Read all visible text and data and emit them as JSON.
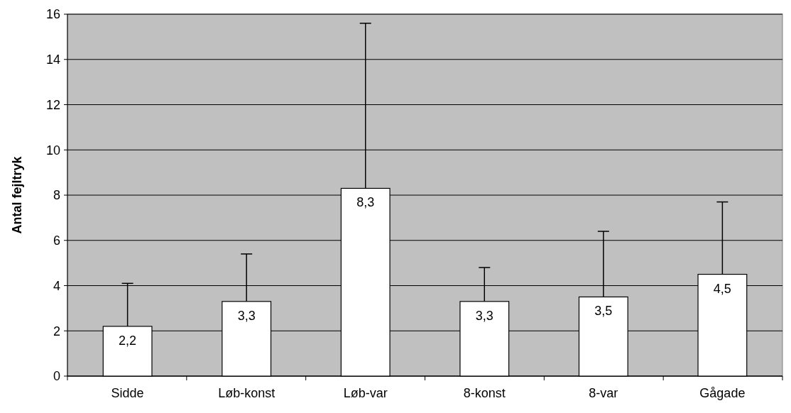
{
  "chart_data": {
    "type": "bar",
    "ylabel": "Antal fejltryk",
    "categories": [
      "Sidde",
      "Løb-konst",
      "Løb-var",
      "8-konst",
      "8-var",
      "Gågade"
    ],
    "values": [
      2.2,
      3.3,
      8.3,
      3.3,
      3.5,
      4.5
    ],
    "value_labels": [
      "2,2",
      "3,3",
      "8,3",
      "3,3",
      "3,5",
      "4,5"
    ],
    "errors": [
      [
        2.2,
        4.1
      ],
      [
        3.3,
        5.4
      ],
      [
        8.3,
        15.6
      ],
      [
        3.3,
        4.8
      ],
      [
        3.5,
        6.4
      ],
      [
        4.5,
        7.7
      ]
    ],
    "color": "#ffffff",
    "ylim": [
      0,
      16
    ],
    "yticks": [
      0,
      2,
      4,
      6,
      8,
      10,
      12,
      14,
      16
    ],
    "grid": "y"
  }
}
